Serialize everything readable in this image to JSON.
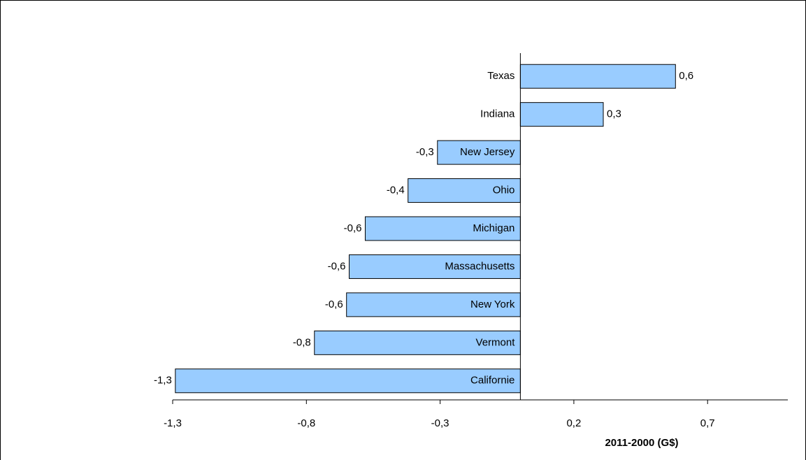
{
  "chart_data": {
    "type": "hbar",
    "xlabel": "2011-2000 (G$)",
    "categories": [
      "Texas",
      "Indiana",
      "New Jersey",
      "Ohio",
      "Michigan",
      "Massachusetts",
      "New York",
      "Vermont",
      "Californie"
    ],
    "values": [
      0.58,
      0.31,
      -0.31,
      -0.42,
      -0.58,
      -0.64,
      -0.65,
      -0.77,
      -1.29
    ],
    "value_labels": [
      "0,6",
      "0,3",
      "-0,3",
      "-0,4",
      "-0,6",
      "-0,6",
      "-0,6",
      "-0,8",
      "-1,3"
    ],
    "color": "#99ccff",
    "xlim": [
      -1.3,
      1.0
    ],
    "xticks": [
      {
        "value": -1.3,
        "label": "-1,3"
      },
      {
        "value": -0.8,
        "label": "-0,8"
      },
      {
        "value": -0.3,
        "label": "-0,3"
      },
      {
        "value": 0.2,
        "label": "0,2"
      },
      {
        "value": 0.7,
        "label": "0,7"
      }
    ],
    "grid": false
  }
}
